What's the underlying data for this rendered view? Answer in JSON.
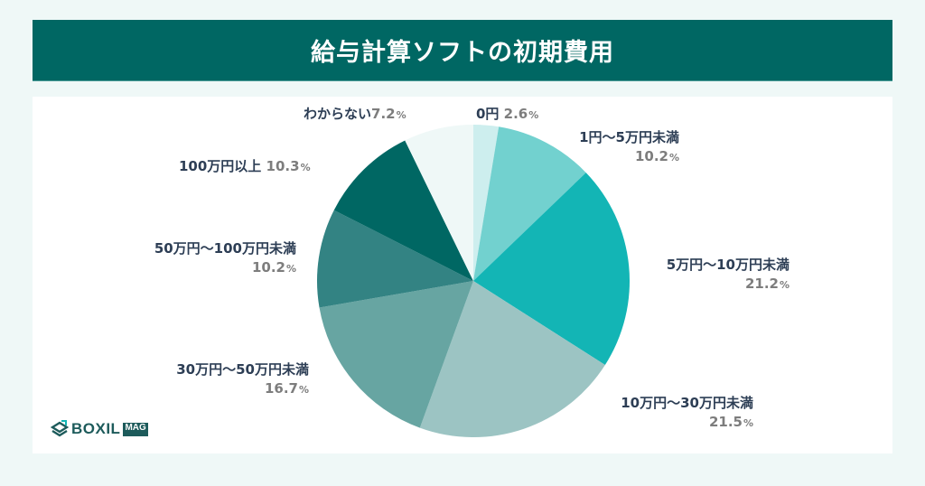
{
  "header": {
    "title": "給与計算ソフトの初期費用"
  },
  "logo": {
    "brand": "BOXIL",
    "badge": "MAG"
  },
  "chart_data": {
    "type": "pie",
    "title": "給与計算ソフトの初期費用",
    "start_angle": "12 o'clock",
    "direction": "clockwise",
    "unit": "%",
    "slices": [
      {
        "label": "0円",
        "value": 2.6,
        "color": "#cdeeee"
      },
      {
        "label": "1円〜5万円未満",
        "value": 10.2,
        "color": "#72d1cf"
      },
      {
        "label": "5万円〜10万円未満",
        "value": 21.2,
        "color": "#13b5b5"
      },
      {
        "label": "10万円〜30万円未満",
        "value": 21.5,
        "color": "#9cc4c3"
      },
      {
        "label": "30万円〜50万円未満",
        "value": 16.7,
        "color": "#67a5a2"
      },
      {
        "label": "50万円〜100万円未満",
        "value": 10.2,
        "color": "#338383"
      },
      {
        "label": "100万円以上",
        "value": 10.3,
        "color": "#006763"
      },
      {
        "label": "わからない",
        "value": 7.2,
        "color": "#eff8f7"
      }
    ]
  },
  "labels": [
    {
      "text": "0円",
      "pct": "2.6",
      "sym": "%"
    },
    {
      "text": "1円〜5万円未満",
      "pct": "10.2",
      "sym": "%"
    },
    {
      "text": "5万円〜10万円未満",
      "pct": "21.2",
      "sym": "%"
    },
    {
      "text": "10万円〜30万円未満",
      "pct": "21.5",
      "sym": "%"
    },
    {
      "text": "30万円〜50万円未満",
      "pct": "16.7",
      "sym": "%"
    },
    {
      "text": "50万円〜100万円未満",
      "pct": "10.2",
      "sym": "%"
    },
    {
      "text": "100万円以上",
      "pct": "10.3",
      "sym": "%"
    },
    {
      "text": "わからない",
      "pct": "7.2",
      "sym": "%"
    }
  ]
}
